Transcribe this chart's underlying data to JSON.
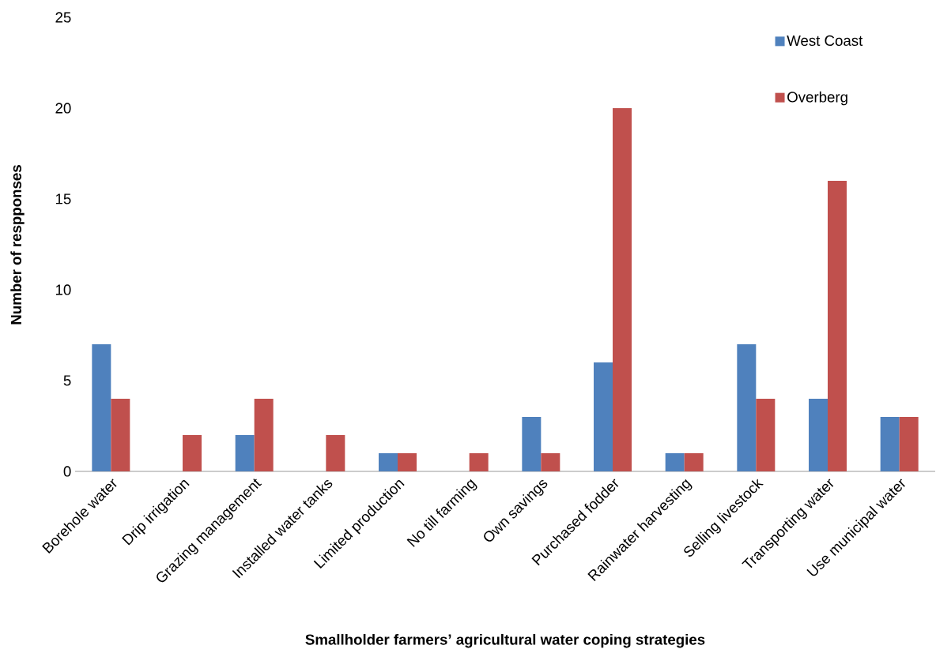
{
  "chart_data": {
    "type": "bar",
    "xlabel": "Smallholder farmers’ agricultural water coping strategies",
    "ylabel": "Number of respponses",
    "categories": [
      "Borehole water",
      "Drip irrigation",
      "Grazing management",
      "Installed water tanks",
      "Limited production",
      "No till farming",
      "Own savings",
      "Purchased fodder",
      "Rainwater harvesting",
      "Selling livestock",
      "Transporting water",
      "Use municipal water"
    ],
    "series": [
      {
        "name": "West Coast",
        "color": "#4f81bd",
        "values": [
          7,
          0,
          2,
          0,
          1,
          0,
          3,
          6,
          1,
          7,
          4,
          3
        ]
      },
      {
        "name": "Overberg",
        "color": "#c0504d",
        "values": [
          4,
          2,
          4,
          2,
          1,
          1,
          1,
          20,
          1,
          4,
          16,
          3
        ]
      }
    ],
    "ylim": [
      0,
      25
    ],
    "yticks": [
      0,
      5,
      10,
      15,
      20,
      25
    ],
    "legend": "top right"
  }
}
